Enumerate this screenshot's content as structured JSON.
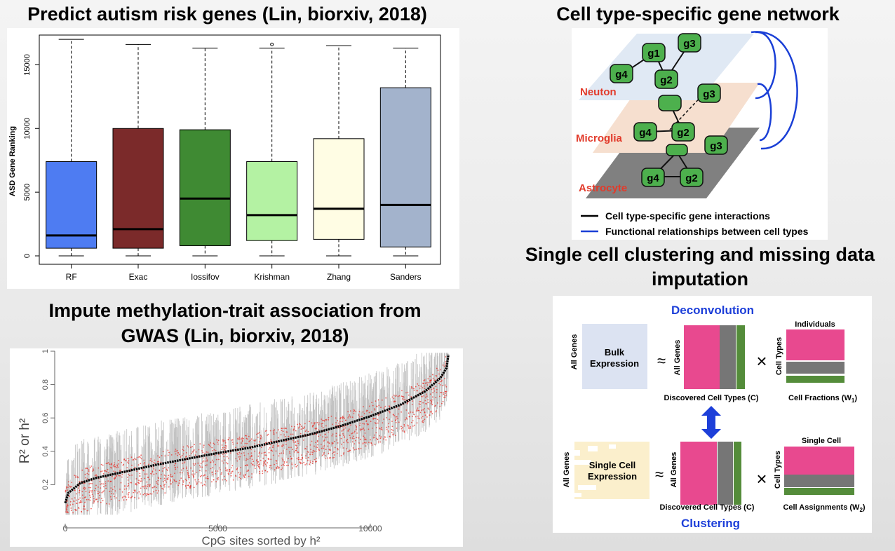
{
  "titles": {
    "top_left": "Predict autism risk genes (Lin, biorxiv, 2018)",
    "top_right": "Cell type-specific gene network",
    "bottom_left_1": "Impute methylation-trait association from",
    "bottom_left_2": "GWAS (Lin, biorxiv, 2018)",
    "bottom_right_1": "Single cell clustering and missing data",
    "bottom_right_2": "imputation"
  },
  "chart_data": [
    {
      "type": "box",
      "ylabel": "ASD Gene Ranking",
      "ylim": [
        0,
        17500
      ],
      "yticks": [
        0,
        5000,
        10000,
        15000
      ],
      "categories": [
        "RF",
        "Exac",
        "Iossifov",
        "Krishman",
        "Zhang",
        "Sanders"
      ],
      "colors": [
        "#4e7cf2",
        "#7b2a2a",
        "#3f8a33",
        "#b4f2a3",
        "#fffde4",
        "#a3b3cc"
      ],
      "boxes": [
        {
          "min": 0,
          "q1": 600,
          "median": 1600,
          "q3": 7400,
          "max": 17000
        },
        {
          "min": 0,
          "q1": 600,
          "median": 2100,
          "q3": 10000,
          "max": 16600
        },
        {
          "min": 0,
          "q1": 800,
          "median": 4500,
          "q3": 9900,
          "max": 16300
        },
        {
          "min": 0,
          "q1": 1200,
          "median": 3200,
          "q3": 7400,
          "max": 16300,
          "outliers": [
            16600
          ]
        },
        {
          "min": 0,
          "q1": 1300,
          "median": 3700,
          "q3": 9200,
          "max": 16500
        },
        {
          "min": 0,
          "q1": 700,
          "median": 4000,
          "q3": 13200,
          "max": 16300
        }
      ]
    },
    {
      "type": "scatter",
      "xlabel": "CpG sites sorted by h²",
      "ylabel": "R² or h²",
      "xlim": [
        0,
        12600
      ],
      "ylim": [
        0,
        1
      ],
      "xticks": [
        0,
        5000,
        10000
      ],
      "yticks": [
        0.2,
        0.4,
        0.6,
        0.8,
        1
      ],
      "series": [
        {
          "color": "#000000",
          "curve": [
            [
              0,
              0.09
            ],
            [
              100,
              0.15
            ],
            [
              500,
              0.21
            ],
            [
              1000,
              0.24
            ],
            [
              2000,
              0.28
            ],
            [
              3000,
              0.32
            ],
            [
              4000,
              0.355
            ],
            [
              5000,
              0.39
            ],
            [
              6000,
              0.42
            ],
            [
              7000,
              0.46
            ],
            [
              8000,
              0.5
            ],
            [
              9000,
              0.55
            ],
            [
              10000,
              0.61
            ],
            [
              11000,
              0.68
            ],
            [
              11800,
              0.76
            ],
            [
              12300,
              0.84
            ],
            [
              12500,
              0.9
            ],
            [
              12560,
              0.98
            ]
          ]
        },
        {
          "color": "#bbbbbb"
        },
        {
          "color": "#e8302a"
        }
      ]
    }
  ],
  "network": {
    "layers": [
      "Neuton",
      "Microglia",
      "Astrocyte"
    ],
    "layer_colors": [
      "#dfe9f5",
      "#f6dfcf",
      "#7f7f7f"
    ],
    "genes": [
      "g1",
      "g2",
      "g3",
      "g4"
    ],
    "legend": [
      {
        "label": "Cell type-specific gene interactions",
        "color": "#000000"
      },
      {
        "label": "Functional relationships between cell types",
        "color": "#1a3fd6"
      }
    ]
  },
  "clustering": {
    "deconvolution": "Deconvolution",
    "clustering": "Clustering",
    "all_genes": "All Genes",
    "bulk_expression": [
      "Bulk",
      "Expression"
    ],
    "single_cell_expression": [
      "Single Cell",
      "Expression"
    ],
    "approx": "≈",
    "times": "×",
    "discovered": "Discovered Cell Types (C)",
    "individuals": "Individuals",
    "single_cell": "Single Cell",
    "cell_types": "Cell Types",
    "cell_fractions": "Cell Fractions (W",
    "cell_fractions_sub": "1",
    "cell_assignments": "Cell Assignments (W",
    "cell_assignments_sub": "2",
    "close_paren": ")",
    "colors": {
      "pink": "#e8498f",
      "gray": "#767676",
      "green": "#548c3a",
      "blue": "#1d3fd9"
    }
  }
}
